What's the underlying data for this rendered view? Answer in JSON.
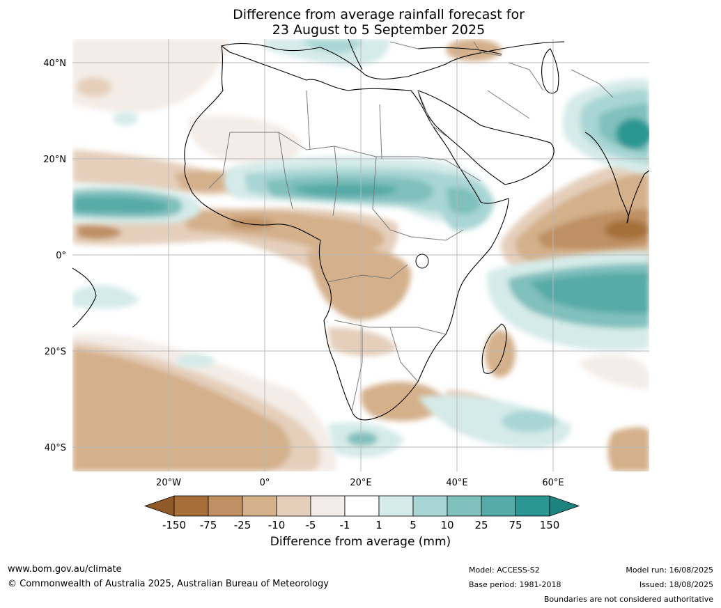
{
  "title_line1": "Difference from average rainfall forecast for",
  "title_line2": "23 August to 5 September 2025",
  "lat_labels": [
    "40°N",
    "20°N",
    "0°",
    "20°S",
    "40°S"
  ],
  "lon_labels": [
    "20°W",
    "0°",
    "20°E",
    "40°E",
    "60°E"
  ],
  "colorbar": {
    "title": "Difference from average (mm)",
    "ticks": [
      "-150",
      "-75",
      "-25",
      "-10",
      "-5",
      "-1",
      "1",
      "5",
      "10",
      "25",
      "75",
      "150"
    ],
    "colors": [
      "#a66f3a",
      "#be9063",
      "#d4b08b",
      "#e5cfbb",
      "#f4ece6",
      "#ffffff",
      "#d5ebe9",
      "#a9d6d4",
      "#80c0bd",
      "#56aaa7",
      "#2c9792"
    ]
  },
  "footer": {
    "site": "www.bom.gov.au/climate",
    "copyright": "© Commonwealth of Australia 2025, Australian Bureau of Meteorology",
    "model": "Model: ACCESS-S2",
    "base_period": "Base period: 1981-2018",
    "model_run": "Model run: 16/08/2025",
    "issued": "Issued: 18/08/2025",
    "disclaimer": "Boundaries are not considered authoritative"
  }
}
